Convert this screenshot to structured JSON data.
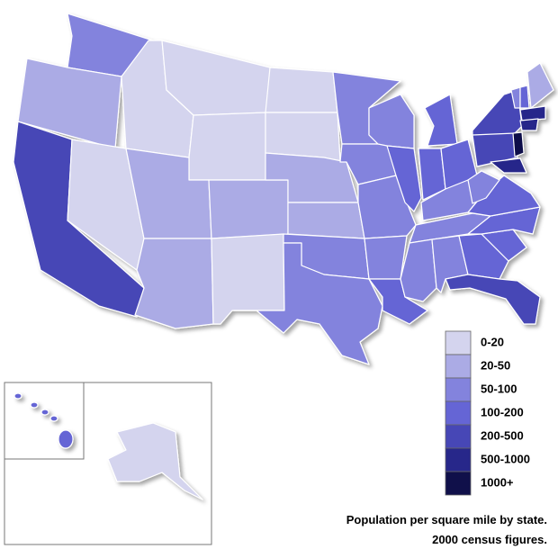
{
  "legend": {
    "items": [
      {
        "label": "0-20",
        "color": "#d4d4ee"
      },
      {
        "label": "20-50",
        "color": "#ababe5"
      },
      {
        "label": "50-100",
        "color": "#8383dd"
      },
      {
        "label": "100-200",
        "color": "#6565d5"
      },
      {
        "label": "200-500",
        "color": "#4747b6"
      },
      {
        "label": "500-1000",
        "color": "#27278a"
      },
      {
        "label": "1000+",
        "color": "#10104a"
      }
    ]
  },
  "caption": {
    "lines": [
      "Population per square mile by state.",
      "2000 census figures."
    ]
  }
}
